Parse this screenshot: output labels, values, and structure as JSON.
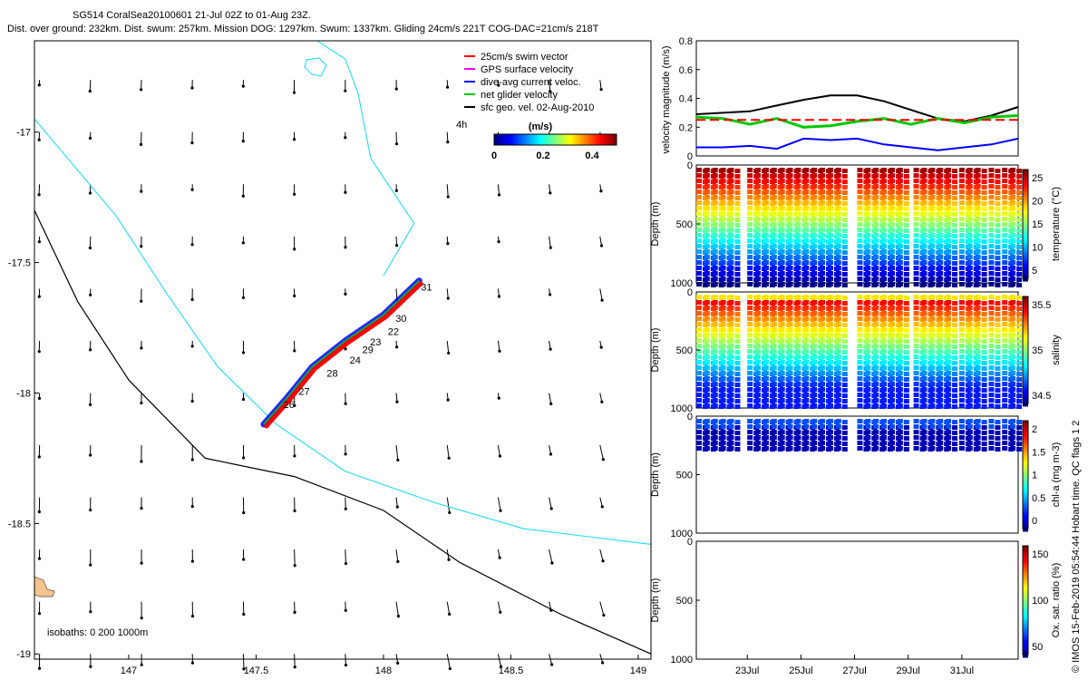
{
  "chart_data": {
    "type": "composite",
    "header": {
      "line1": "SG514 CoralSea20100601 21-Jul 02Z to 01-Aug 23Z.",
      "line2": "Dist. over ground: 232km. Dist. swum: 257km. Mission DOG: 1297km. Swum: 1337km. Gliding 24cm/s 221T COG-DAC=21cm/s 218T"
    },
    "map": {
      "type": "map",
      "xlim": [
        146.63,
        149.05
      ],
      "ylim": [
        -19.02,
        -16.65
      ],
      "xticks": [
        147,
        147.5,
        148,
        148.5,
        149
      ],
      "xtick_labels": [
        "147",
        "147.5",
        "148",
        "148.5",
        "149"
      ],
      "yticks": [
        -17,
        -17.5,
        -18,
        -18.5,
        -19
      ],
      "ytick_labels": [
        "-17",
        "-17.5",
        "-18",
        "-18.5",
        "-19"
      ],
      "legend": [
        {
          "label": "25cm/s swim vector",
          "color": "#ff0000"
        },
        {
          "label": "GPS surface velocity",
          "color": "#ff00ff"
        },
        {
          "label": "dive-avg current veloc.",
          "color": "#0000ff"
        },
        {
          "label": "net glider velocity",
          "color": "#00c800"
        },
        {
          "label": "sfc geo. vel. 02-Aug-2010",
          "color": "#000000"
        }
      ],
      "colorbar": {
        "title": "(m/s)",
        "ticks": [
          "0",
          "0.2",
          "0.4"
        ],
        "range": [
          0,
          0.5
        ]
      },
      "scale_label": "4h",
      "isobath_label": "isobaths: 0   200  1000m",
      "day_labels": [
        "31",
        "30",
        "22",
        "23",
        "29",
        "24",
        "28",
        "27",
        "26"
      ],
      "track": [
        [
          147.53,
          -18.12
        ],
        [
          147.62,
          -18.02
        ],
        [
          147.72,
          -17.9
        ],
        [
          147.85,
          -17.8
        ],
        [
          148.0,
          -17.7
        ],
        [
          148.14,
          -17.57
        ]
      ],
      "isobath_200m": [
        [
          146.63,
          -16.95
        ],
        [
          146.95,
          -17.32
        ],
        [
          147.15,
          -17.62
        ],
        [
          147.35,
          -17.9
        ],
        [
          147.58,
          -18.12
        ],
        [
          147.85,
          -18.3
        ],
        [
          148.2,
          -18.42
        ],
        [
          148.55,
          -18.52
        ],
        [
          149.05,
          -18.58
        ]
      ],
      "isobath_1000m": [
        [
          146.63,
          -17.3
        ],
        [
          146.8,
          -17.65
        ],
        [
          147.0,
          -17.95
        ],
        [
          147.3,
          -18.25
        ],
        [
          147.65,
          -18.32
        ],
        [
          148.0,
          -18.45
        ],
        [
          148.3,
          -18.65
        ],
        [
          148.7,
          -18.85
        ],
        [
          149.05,
          -19.0
        ]
      ],
      "coast_piece": [
        [
          148.0,
          -17.55
        ],
        [
          148.12,
          -17.35
        ],
        [
          147.95,
          -17.1
        ],
        [
          147.9,
          -16.85
        ],
        [
          147.85,
          -16.72
        ],
        [
          147.74,
          -16.65
        ]
      ]
    },
    "velocity_panel": {
      "type": "line",
      "ylabel": "velocity magnitude (m/s)",
      "ylim": [
        0,
        0.8
      ],
      "yticks": [
        "0",
        "0.2",
        "0.4",
        "0.6",
        "0.8"
      ],
      "x_days": [
        0,
        1,
        2,
        3,
        4,
        5,
        6,
        7,
        8,
        9,
        10,
        11,
        12
      ],
      "series": [
        {
          "name": "surface geostrophic speed",
          "color": "#000000",
          "values": [
            0.29,
            0.3,
            0.31,
            0.35,
            0.39,
            0.42,
            0.42,
            0.38,
            0.32,
            0.26,
            0.24,
            0.28,
            0.34
          ]
        },
        {
          "name": "net glider velocity",
          "color": "#00c800",
          "values": [
            0.27,
            0.26,
            0.22,
            0.26,
            0.2,
            0.21,
            0.24,
            0.26,
            0.22,
            0.26,
            0.23,
            0.27,
            0.28
          ]
        },
        {
          "name": "dive-avg current",
          "color": "#0000ff",
          "values": [
            0.06,
            0.06,
            0.07,
            0.05,
            0.12,
            0.11,
            0.12,
            0.08,
            0.06,
            0.04,
            0.06,
            0.08,
            0.12
          ]
        },
        {
          "name": "25cm/s reference",
          "color": "#ff0000",
          "values": [
            0.25,
            0.25,
            0.25,
            0.25,
            0.25,
            0.25,
            0.25,
            0.25,
            0.25,
            0.25,
            0.25,
            0.25,
            0.25
          ]
        }
      ]
    },
    "profile_panels": [
      {
        "name": "temperature",
        "ylabel": "Depth (m)",
        "cbar_label": "temperature (°C)",
        "cbar_ticks": [
          "25",
          "20",
          "15",
          "10",
          "5"
        ],
        "depth_ticks": [
          "0",
          "500",
          "1000"
        ],
        "max_depth": 1000
      },
      {
        "name": "salinity",
        "ylabel": "Depth (m)",
        "cbar_label": "salinity",
        "cbar_ticks": [
          "35.5",
          "35",
          "34.5"
        ],
        "depth_ticks": [
          "0",
          "500",
          "1000"
        ],
        "max_depth": 1000
      },
      {
        "name": "chl-a",
        "ylabel": "Depth (m)",
        "cbar_label": "chl-a (mg m-3)",
        "cbar_ticks": [
          "2",
          "1.5",
          "1",
          "0.5",
          "0"
        ],
        "depth_ticks": [
          "0",
          "500",
          "1000"
        ],
        "max_depth": 300
      },
      {
        "name": "oxygen",
        "ylabel": "Depth (m)",
        "cbar_label": "Ox. sat. ratio (%)",
        "cbar_ticks": [
          "150",
          "100",
          "50"
        ],
        "depth_ticks": [
          "0",
          "500",
          "1000"
        ],
        "max_depth": 0
      }
    ],
    "profile_casts_days": [
      0.1,
      0.4,
      0.7,
      1.0,
      1.3,
      2.0,
      2.3,
      2.6,
      2.9,
      3.2,
      3.5,
      3.8,
      4.1,
      4.4,
      4.7,
      5.0,
      5.3,
      6.1,
      6.4,
      6.7,
      7.0,
      7.3,
      7.6,
      8.2,
      8.5,
      8.8,
      9.1,
      9.4,
      9.9,
      10.2,
      10.5,
      11.0,
      11.5,
      11.8
    ],
    "date_labels": [
      "23Jul",
      "25Jul",
      "27Jul",
      "29Jul",
      "31Jul"
    ],
    "credit": "© IMOS 15-Feb-2019 05:54:44 Hobart time. QC flags 1  2"
  }
}
